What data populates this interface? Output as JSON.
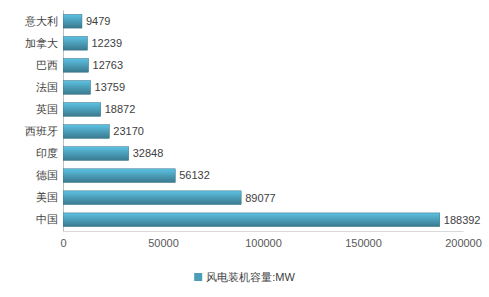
{
  "chart_data": {
    "type": "bar",
    "orientation": "horizontal",
    "categories": [
      "意大利",
      "加拿大",
      "巴西",
      "法国",
      "英国",
      "西班牙",
      "印度",
      "德国",
      "美国",
      "中国"
    ],
    "series": [
      {
        "name": "风电装机容量:MW",
        "color": "#4b9db8",
        "values": [
          9479,
          12239,
          12763,
          13759,
          18872,
          23170,
          32848,
          56132,
          89077,
          188392
        ]
      }
    ],
    "xlim": [
      0,
      200000
    ],
    "xticks": [
      0,
      50000,
      100000,
      150000,
      200000
    ],
    "grid": false,
    "data_labels": true,
    "legend": "bottom"
  }
}
